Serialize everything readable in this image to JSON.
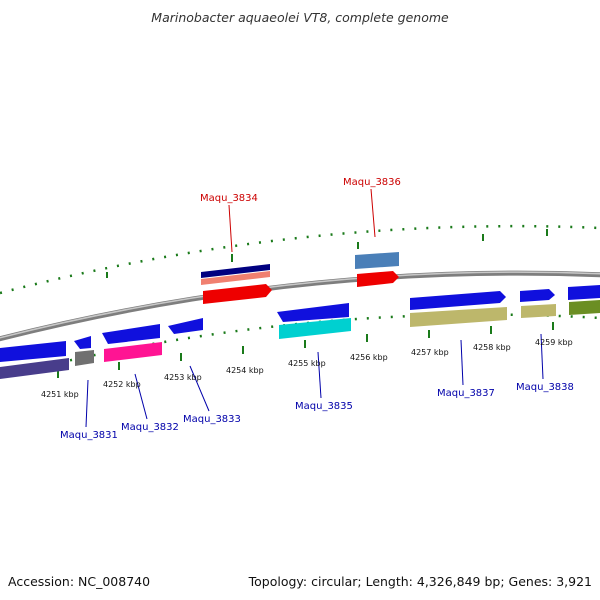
{
  "title": "Marinobacter aquaeolei VT8, complete genome",
  "footer": {
    "accession": "Accession: NC_008740",
    "summary": "Topology: circular; Length: 4,326,849 bp; Genes: 3,921"
  },
  "colors": {
    "backbone": "#8c8c8c",
    "tick": "#1a7a1a",
    "label_forward": "#cc0000",
    "label_reverse": "#0000aa",
    "scale_text": "#111111"
  },
  "scale_labels": [
    "4251 kbp",
    "4252 kbp",
    "4253 kbp",
    "4254 kbp",
    "4255 kbp",
    "4256 kbp",
    "4257 kbp",
    "4258 kbp",
    "4259 kbp"
  ],
  "gene_labels": [
    {
      "text": "Maqu_3831",
      "strand": "reverse"
    },
    {
      "text": "Maqu_3832",
      "strand": "reverse"
    },
    {
      "text": "Maqu_3833",
      "strand": "reverse"
    },
    {
      "text": "Maqu_3834",
      "strand": "forward"
    },
    {
      "text": "Maqu_3835",
      "strand": "reverse"
    },
    {
      "text": "Maqu_3836",
      "strand": "forward"
    },
    {
      "text": "Maqu_3837",
      "strand": "reverse"
    },
    {
      "text": "Maqu_3838",
      "strand": "reverse"
    }
  ]
}
